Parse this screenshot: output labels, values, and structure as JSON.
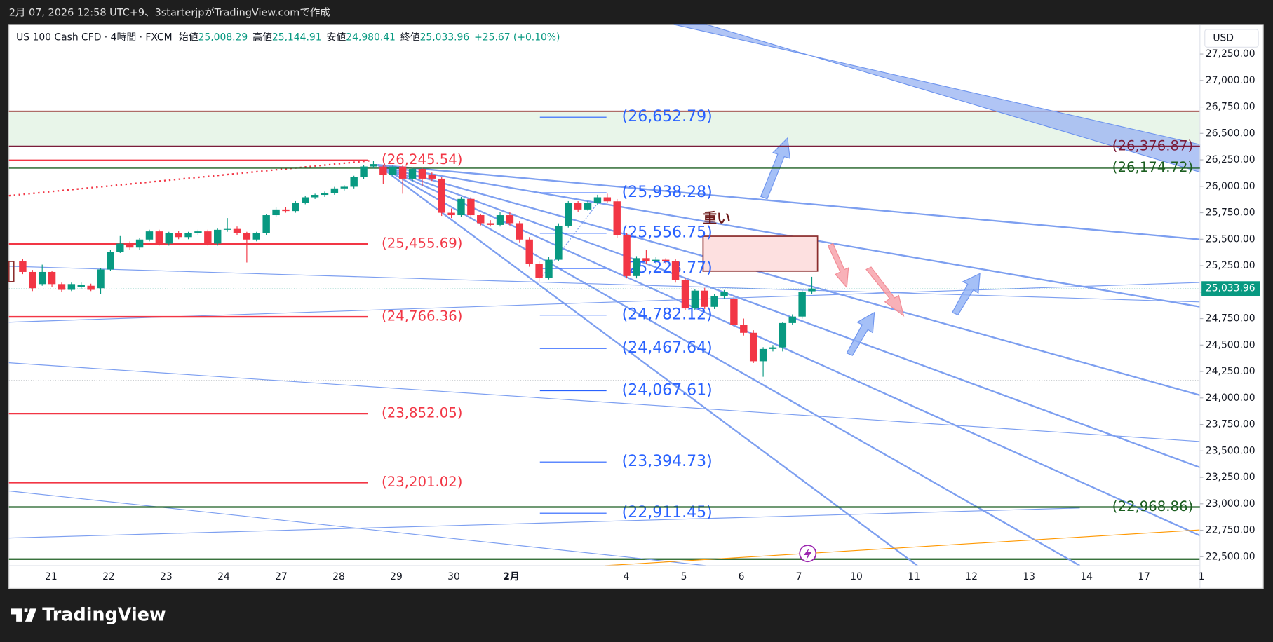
{
  "header": {
    "caption": "2月 07, 2026 12:58 UTC+9、3starterjpがTradingView.comで作成"
  },
  "chart_data": {
    "type": "candlestick",
    "title": "US 100 Cash CFD · 4時間 · FXCM",
    "ohlc_legend": [
      {
        "label": "始値",
        "value": "25,008.29"
      },
      {
        "label": "高値",
        "value": "25,144.91"
      },
      {
        "label": "安値",
        "value": "24,980.41"
      },
      {
        "label": "終値",
        "value": "25,033.96"
      }
    ],
    "change": "+25.67 (+0.10%)",
    "currency": "USD",
    "categories": [
      "21",
      "22",
      "23",
      "24",
      "27",
      "28",
      "29",
      "30",
      "2月",
      null,
      "4",
      "5",
      "6",
      "7",
      "10",
      "11",
      "12",
      "13",
      "14",
      "17",
      "1"
    ],
    "candles": [
      [
        25290,
        25310,
        25170,
        25191
      ],
      [
        25191,
        25210,
        25010,
        25037
      ],
      [
        25076,
        25260,
        25060,
        25191
      ],
      [
        25191,
        25200,
        25050,
        25076
      ],
      [
        25076,
        25090,
        25000,
        25022
      ],
      [
        25022,
        25090,
        25010,
        25076
      ],
      [
        25050,
        25090,
        25030,
        25070
      ],
      [
        25060,
        25080,
        25010,
        25022
      ],
      [
        25037,
        25230,
        24980,
        25214
      ],
      [
        25214,
        25400,
        25200,
        25382
      ],
      [
        25382,
        25530,
        25370,
        25459
      ],
      [
        25459,
        25480,
        25400,
        25421
      ],
      [
        25421,
        25510,
        25400,
        25497
      ],
      [
        25497,
        25590,
        25480,
        25574
      ],
      [
        25574,
        25590,
        25440,
        25459
      ],
      [
        25459,
        25570,
        25440,
        25559
      ],
      [
        25559,
        25580,
        25500,
        25520
      ],
      [
        25520,
        25570,
        25500,
        25559
      ],
      [
        25559,
        25590,
        25540,
        25574
      ],
      [
        25574,
        25590,
        25440,
        25459
      ],
      [
        25459,
        25600,
        25440,
        25589
      ],
      [
        25589,
        25700,
        25570,
        25597
      ],
      [
        25597,
        25620,
        25540,
        25559
      ],
      [
        25559,
        25570,
        25280,
        25497
      ],
      [
        25497,
        25570,
        25480,
        25559
      ],
      [
        25559,
        25740,
        25540,
        25727
      ],
      [
        25727,
        25800,
        25710,
        25781
      ],
      [
        25781,
        25800,
        25750,
        25766
      ],
      [
        25766,
        25860,
        25750,
        25842
      ],
      [
        25842,
        25910,
        25830,
        25896
      ],
      [
        25896,
        25930,
        25880,
        25919
      ],
      [
        25919,
        25950,
        25900,
        25934
      ],
      [
        25934,
        25995,
        25920,
        25980
      ],
      [
        25980,
        26010,
        25960,
        25996
      ],
      [
        25996,
        26100,
        25980,
        26088
      ],
      [
        26088,
        26200,
        26070,
        26187
      ],
      [
        26187,
        26240,
        26170,
        26210
      ],
      [
        26187,
        26200,
        26020,
        26111
      ],
      [
        26111,
        26200,
        26090,
        26187
      ],
      [
        26187,
        26200,
        25930,
        26072
      ],
      [
        26072,
        26180,
        26050,
        26164
      ],
      [
        26164,
        26180,
        26000,
        26072
      ],
      [
        26111,
        26130,
        26050,
        26072
      ],
      [
        26072,
        26090,
        25720,
        25750
      ],
      [
        25750,
        25790,
        25700,
        25727
      ],
      [
        25727,
        25900,
        25710,
        25881
      ],
      [
        25881,
        25900,
        25700,
        25727
      ],
      [
        25727,
        25740,
        25630,
        25651
      ],
      [
        25651,
        25680,
        25620,
        25635
      ],
      [
        25635,
        25760,
        25620,
        25727
      ],
      [
        25727,
        25760,
        25630,
        25651
      ],
      [
        25651,
        25670,
        25470,
        25497
      ],
      [
        25497,
        25520,
        25240,
        25267
      ],
      [
        25267,
        25290,
        25100,
        25137
      ],
      [
        25137,
        25330,
        25120,
        25306
      ],
      [
        25306,
        25650,
        25290,
        25628
      ],
      [
        25628,
        25860,
        25610,
        25842
      ],
      [
        25842,
        25860,
        25760,
        25781
      ],
      [
        25781,
        25860,
        25770,
        25842
      ],
      [
        25842,
        25920,
        25820,
        25896
      ],
      [
        25896,
        25930,
        25840,
        25858
      ],
      [
        25858,
        25880,
        25510,
        25536
      ],
      [
        25536,
        25560,
        25130,
        25152
      ],
      [
        25152,
        25340,
        25130,
        25321
      ],
      [
        25321,
        25400,
        25270,
        25290
      ],
      [
        25290,
        25330,
        25270,
        25306
      ],
      [
        25306,
        25320,
        25270,
        25290
      ],
      [
        25290,
        25310,
        25090,
        25114
      ],
      [
        25114,
        25130,
        24830,
        24846
      ],
      [
        24846,
        25030,
        24830,
        25014
      ],
      [
        25014,
        25040,
        24840,
        24861
      ],
      [
        24861,
        24980,
        24840,
        24961
      ],
      [
        24961,
        25020,
        24940,
        24999
      ],
      [
        24938,
        24970,
        24670,
        24692
      ],
      [
        24692,
        24750,
        24590,
        24616
      ],
      [
        24616,
        24640,
        24330,
        24347
      ],
      [
        24347,
        24480,
        24200,
        24463
      ],
      [
        24463,
        24500,
        24440,
        24478
      ],
      [
        24478,
        24720,
        24440,
        24708
      ],
      [
        24708,
        24790,
        24690,
        24769
      ],
      [
        24769,
        25020,
        24750,
        24999
      ],
      [
        25008.29,
        25144.91,
        24980.41,
        25033.96
      ]
    ],
    "ylim": [
      22416,
      27529
    ],
    "yticks": [
      {
        "value": 22500,
        "label": "22,500.00"
      },
      {
        "value": 22750,
        "label": "22,750.00"
      },
      {
        "value": 23000,
        "label": "23,000.00"
      },
      {
        "value": 23250,
        "label": "23,250.00"
      },
      {
        "value": 23500,
        "label": "23,500.00"
      },
      {
        "value": 23750,
        "label": "23,750.00"
      },
      {
        "value": 24000,
        "label": "24,000.00"
      },
      {
        "value": 24250,
        "label": "24,250.00"
      },
      {
        "value": 24500,
        "label": "24,500.00"
      },
      {
        "value": 24750,
        "label": "24,750.00"
      },
      {
        "value": 25000,
        "label": "25,000.00"
      },
      {
        "value": 25250,
        "label": "25,250.00"
      },
      {
        "value": 25500,
        "label": "25,500.00"
      },
      {
        "value": 25750,
        "label": "25,750.00"
      },
      {
        "value": 26000,
        "label": "26,000.00"
      },
      {
        "value": 26250,
        "label": "26,250.00"
      },
      {
        "value": 26500,
        "label": "26,500.00"
      },
      {
        "value": 26750,
        "label": "26,750.00"
      },
      {
        "value": 27000,
        "label": "27,000.00"
      },
      {
        "value": 27250,
        "label": "27,250.00"
      }
    ],
    "last_price": {
      "value": 25033.96,
      "label": "25,033.96"
    },
    "levels": [
      {
        "value": 26245.54,
        "label": "(26,245.54)",
        "style": "red"
      },
      {
        "value": 25455.69,
        "label": "(25,455.69)",
        "style": "red"
      },
      {
        "value": 24766.36,
        "label": "(24,766.36)",
        "style": "red"
      },
      {
        "value": 23852.05,
        "label": "(23,852.05)",
        "style": "red"
      },
      {
        "value": 23201.02,
        "label": "(23,201.02)",
        "style": "red"
      },
      {
        "value": 26652.79,
        "label": "(26,652.79)",
        "style": "blue"
      },
      {
        "value": 25938.28,
        "label": "(25,938.28)",
        "style": "blue"
      },
      {
        "value": 25556.75,
        "label": "(25,556.75)",
        "style": "blue"
      },
      {
        "value": 25223.77,
        "label": "(25,223.77)",
        "style": "blue"
      },
      {
        "value": 24782.12,
        "label": "(24,782.12)",
        "style": "blue"
      },
      {
        "value": 24467.64,
        "label": "(24,467.64)",
        "style": "blue"
      },
      {
        "value": 24067.61,
        "label": "(24,067.61)",
        "style": "blue"
      },
      {
        "value": 23394.73,
        "label": "(23,394.73)",
        "style": "blue"
      },
      {
        "value": 22911.45,
        "label": "(22,911.45)",
        "style": "blue"
      },
      {
        "value": 26376.87,
        "label": "(26,376.87)",
        "style": "dark-red"
      },
      {
        "value": 26174.72,
        "label": "(26,174.72)",
        "style": "dark-green"
      },
      {
        "value": 22968.86,
        "label": "(22,968.86)",
        "style": "dark-green"
      }
    ],
    "annotation": "重い",
    "colors": {
      "up": "#089981",
      "down": "#f23645"
    }
  },
  "branding": "TradingView"
}
